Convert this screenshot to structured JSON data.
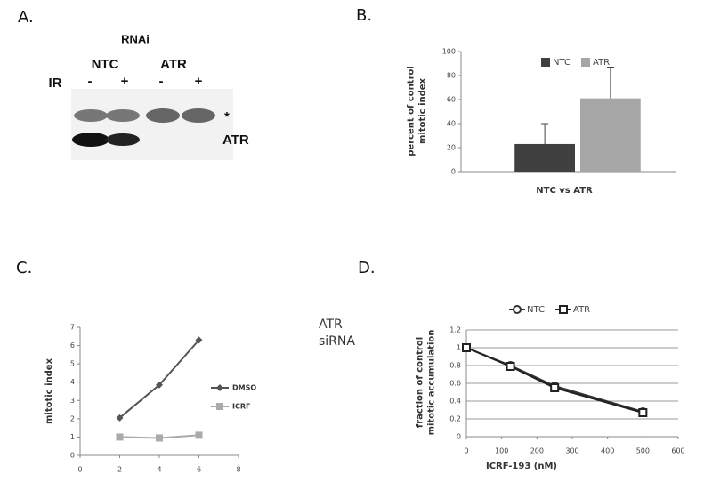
{
  "panel_labels": [
    "A.",
    "B.",
    "C.",
    "D."
  ],
  "blot": {
    "title": "RNAi",
    "groups": [
      "NTC",
      "ATR"
    ],
    "row_label": "IR",
    "lanes": [
      "-",
      "+",
      "-",
      "+"
    ],
    "band_labels": [
      "*",
      "ATR"
    ]
  },
  "chart_data": [
    {
      "type": "bar",
      "ylabel": [
        "percent of control",
        "mitotic index"
      ],
      "xlabel": "NTC vs ATR",
      "categories": [
        null
      ],
      "series": [
        {
          "name": "NTC",
          "color": "#404040",
          "values": [
            23
          ],
          "errors": [
            17
          ]
        },
        {
          "name": "ATR",
          "color": "#a6a6a6",
          "values": [
            61
          ],
          "errors": [
            26
          ]
        }
      ],
      "ylim": [
        0,
        100
      ],
      "yticks": [
        0,
        20,
        40,
        60,
        80,
        100
      ],
      "legend": "top"
    },
    {
      "type": "line",
      "ylabel": [
        "mitotic index"
      ],
      "annotation": [
        "ATR",
        "siRNA"
      ],
      "x": [
        2,
        4,
        6
      ],
      "series": [
        {
          "name": "DMSO",
          "color": "#555555",
          "marker": "diamond",
          "values": [
            2.05,
            3.85,
            6.3
          ]
        },
        {
          "name": "ICRF",
          "color": "#aaaaaa",
          "marker": "square",
          "values": [
            1.0,
            0.95,
            1.1
          ]
        }
      ],
      "xlim": [
        0,
        8
      ],
      "xticks": [
        0,
        2,
        4,
        6,
        8
      ],
      "ylim": [
        0,
        7
      ],
      "yticks": [
        0,
        1,
        2,
        3,
        4,
        5,
        6,
        7
      ],
      "legend": "right"
    },
    {
      "type": "line",
      "ylabel": [
        "fraction of control",
        "mitotic accumulation"
      ],
      "xlabel": "ICRF-193 (nM)",
      "x": [
        0,
        125,
        250,
        500
      ],
      "series": [
        {
          "name": "NTC",
          "color": "#333333",
          "marker": "circle",
          "values": [
            1.0,
            0.8,
            0.57,
            0.28
          ]
        },
        {
          "name": "ATR",
          "color": "#222222",
          "marker": "square",
          "values": [
            1.0,
            0.79,
            0.55,
            0.27
          ]
        }
      ],
      "xlim": [
        0,
        600
      ],
      "xticks": [
        0,
        100,
        200,
        300,
        400,
        500,
        600
      ],
      "ylim": [
        0,
        1.2
      ],
      "yticks": [
        0,
        0.2,
        0.4,
        0.6,
        0.8,
        1,
        1.2
      ],
      "grid": true,
      "legend": "top"
    }
  ]
}
